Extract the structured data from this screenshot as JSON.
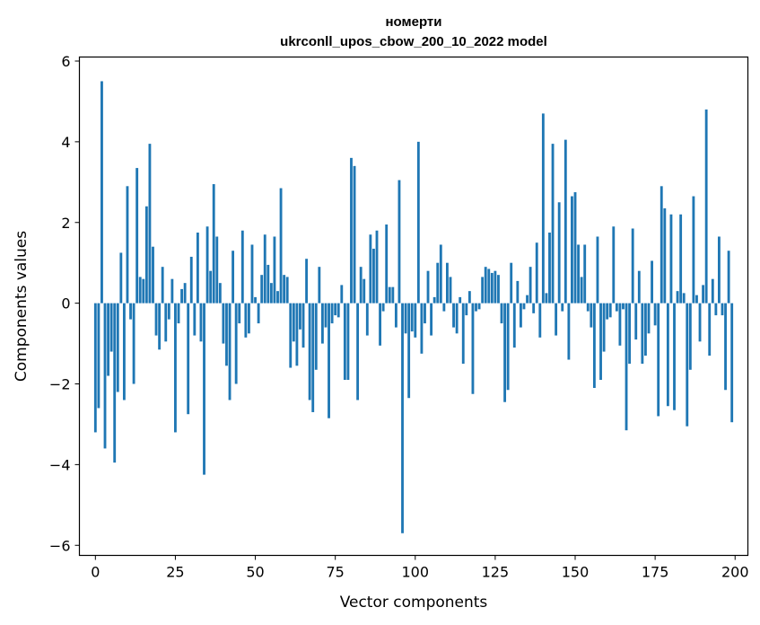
{
  "chart_data": {
    "type": "bar",
    "title_line1": "номерти",
    "title_line2": "ukrconll_upos_cbow_200_10_2022 model",
    "xlabel": "Vector components",
    "ylabel": "Components values",
    "xlim": [
      -5,
      204
    ],
    "ylim": [
      -6.25,
      6.1
    ],
    "grid": false,
    "bar_color": "#1f77b4",
    "x_ticks": [
      0,
      25,
      50,
      75,
      100,
      125,
      150,
      175,
      200
    ],
    "x_tick_labels": [
      "0",
      "25",
      "50",
      "75",
      "100",
      "125",
      "150",
      "175",
      "200"
    ],
    "y_ticks": [
      -6,
      -4,
      -2,
      0,
      2,
      4,
      6
    ],
    "y_tick_labels": [
      "−6",
      "−4",
      "−2",
      "0",
      "2",
      "4",
      "6"
    ],
    "x": [
      0,
      1,
      2,
      3,
      4,
      5,
      6,
      7,
      8,
      9,
      10,
      11,
      12,
      13,
      14,
      15,
      16,
      17,
      18,
      19,
      20,
      21,
      22,
      23,
      24,
      25,
      26,
      27,
      28,
      29,
      30,
      31,
      32,
      33,
      34,
      35,
      36,
      37,
      38,
      39,
      40,
      41,
      42,
      43,
      44,
      45,
      46,
      47,
      48,
      49,
      50,
      51,
      52,
      53,
      54,
      55,
      56,
      57,
      58,
      59,
      60,
      61,
      62,
      63,
      64,
      65,
      66,
      67,
      68,
      69,
      70,
      71,
      72,
      73,
      74,
      75,
      76,
      77,
      78,
      79,
      80,
      81,
      82,
      83,
      84,
      85,
      86,
      87,
      88,
      89,
      90,
      91,
      92,
      93,
      94,
      95,
      96,
      97,
      98,
      99,
      100,
      101,
      102,
      103,
      104,
      105,
      106,
      107,
      108,
      109,
      110,
      111,
      112,
      113,
      114,
      115,
      116,
      117,
      118,
      119,
      120,
      121,
      122,
      123,
      124,
      125,
      126,
      127,
      128,
      129,
      130,
      131,
      132,
      133,
      134,
      135,
      136,
      137,
      138,
      139,
      140,
      141,
      142,
      143,
      144,
      145,
      146,
      147,
      148,
      149,
      150,
      151,
      152,
      153,
      154,
      155,
      156,
      157,
      158,
      159,
      160,
      161,
      162,
      163,
      164,
      165,
      166,
      167,
      168,
      169,
      170,
      171,
      172,
      173,
      174,
      175,
      176,
      177,
      178,
      179,
      180,
      181,
      182,
      183,
      184,
      185,
      186,
      187,
      188,
      189,
      190,
      191,
      192,
      193,
      194,
      195,
      196,
      197,
      198,
      199
    ],
    "values": [
      -3.2,
      -2.6,
      5.5,
      -3.6,
      -1.8,
      -1.2,
      -3.95,
      -2.2,
      1.25,
      -2.4,
      2.9,
      -0.4,
      -2.0,
      3.35,
      0.65,
      0.6,
      2.4,
      3.95,
      1.4,
      -0.8,
      -1.15,
      0.9,
      -0.95,
      -0.4,
      0.6,
      -3.2,
      -0.5,
      0.35,
      0.5,
      -2.75,
      1.15,
      -0.8,
      1.75,
      -0.95,
      -4.25,
      1.9,
      0.8,
      2.95,
      1.65,
      0.5,
      -1.0,
      -1.55,
      -2.4,
      1.3,
      -2.0,
      -0.5,
      1.8,
      -0.85,
      -0.75,
      1.45,
      0.15,
      -0.5,
      0.7,
      1.7,
      0.95,
      0.5,
      1.65,
      0.3,
      2.85,
      0.7,
      0.65,
      -1.6,
      -0.95,
      -1.55,
      -0.65,
      -1.1,
      1.1,
      -2.4,
      -2.7,
      -1.65,
      0.9,
      -1.0,
      -0.6,
      -2.85,
      -0.5,
      -0.3,
      -0.35,
      0.45,
      -1.9,
      -1.9,
      3.6,
      3.4,
      -2.4,
      0.9,
      0.6,
      -0.8,
      1.7,
      1.35,
      1.8,
      -1.05,
      -0.2,
      1.95,
      0.4,
      0.4,
      -0.6,
      3.05,
      -5.7,
      -0.75,
      -2.35,
      -0.7,
      -0.85,
      4.0,
      -1.25,
      -0.5,
      0.8,
      -0.8,
      0.15,
      1.0,
      1.45,
      -0.2,
      1.0,
      0.65,
      -0.6,
      -0.75,
      0.15,
      -1.5,
      -0.3,
      0.3,
      -2.25,
      -0.2,
      -0.15,
      0.65,
      0.9,
      0.85,
      0.75,
      0.8,
      0.7,
      -0.5,
      -2.45,
      -2.15,
      1.0,
      -1.1,
      0.55,
      -0.6,
      -0.15,
      0.2,
      0.9,
      -0.25,
      1.5,
      -0.85,
      4.7,
      0.25,
      1.75,
      3.95,
      -0.8,
      2.5,
      -0.2,
      4.05,
      -1.4,
      2.65,
      2.75,
      1.45,
      0.65,
      1.45,
      -0.2,
      -0.6,
      -2.1,
      1.65,
      -1.9,
      -1.2,
      -0.4,
      -0.35,
      1.9,
      -0.2,
      -1.05,
      -0.15,
      -3.15,
      -1.5,
      1.85,
      -0.9,
      0.8,
      -1.5,
      -1.3,
      -0.75,
      1.05,
      -0.55,
      -2.8,
      2.9,
      2.35,
      -2.55,
      2.2,
      -2.65,
      0.3,
      2.2,
      0.25,
      -3.05,
      -1.65,
      2.65,
      0.2,
      -0.95,
      0.45,
      4.8,
      -1.3,
      0.6,
      -0.3,
      1.65,
      -0.3,
      -2.15,
      1.3,
      -2.95
    ]
  }
}
